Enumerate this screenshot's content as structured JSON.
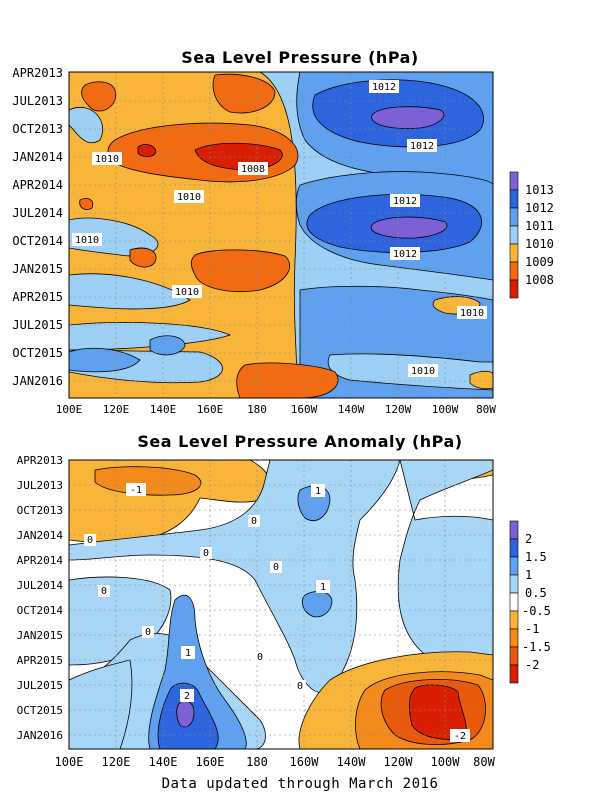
{
  "footer": "Data updated through March 2016",
  "chart_data": [
    {
      "type": "heatmap",
      "title": "Sea Level Pressure (hPa)",
      "x_tick_labels": [
        "100E",
        "120E",
        "140E",
        "160E",
        "180",
        "160W",
        "140W",
        "120W",
        "100W",
        "80W"
      ],
      "y_tick_labels": [
        "APR2013",
        "JUL2013",
        "OCT2013",
        "JAN2014",
        "APR2014",
        "JUL2014",
        "OCT2014",
        "JAN2015",
        "APR2015",
        "JUL2015",
        "OCT2015",
        "JAN2016"
      ],
      "colorbar": {
        "labels": [
          "1013",
          "1012",
          "1011",
          "1010",
          "1009",
          "1008"
        ],
        "colors": [
          "#7b60d6",
          "#2e64dd",
          "#5fa0ef",
          "#9ed0f5",
          "#f8b53a",
          "#f26b12",
          "#d81f04"
        ]
      },
      "contour_labels": [
        "1012",
        "1012",
        "1010",
        "1008",
        "1010",
        "1012",
        "1010",
        "1012",
        "1010",
        "1010",
        "1010"
      ],
      "background_value": "1010-1011 (light blue) east of 170W; 1009-1010 (orange) west of 170W",
      "features": [
        {
          "description": "High pressure core (>1013) near 120W",
          "times": [
            "JUL2013",
            "JUL2014"
          ]
        },
        {
          "description": "Low pressure core (<1008) near 160E",
          "times": [
            "JAN2014"
          ]
        }
      ]
    },
    {
      "type": "heatmap",
      "title": "Sea Level Pressure Anomaly (hPa)",
      "x_tick_labels": [
        "100E",
        "120E",
        "140E",
        "160E",
        "180",
        "160W",
        "140W",
        "120W",
        "100W",
        "80W"
      ],
      "y_tick_labels": [
        "APR2013",
        "JUL2013",
        "OCT2013",
        "JAN2014",
        "APR2014",
        "JUL2014",
        "OCT2014",
        "JAN2015",
        "APR2015",
        "JUL2015",
        "OCT2015",
        "JAN2016"
      ],
      "colorbar": {
        "labels": [
          "2",
          "1.5",
          "1",
          "0.5",
          "-0.5",
          "-1",
          "-1.5",
          "-2"
        ],
        "colors": [
          "#7b60d6",
          "#2e64dd",
          "#5fa0ef",
          "#a8d6f7",
          "#ffffff",
          "#f8b53a",
          "#f28a1c",
          "#e8590c",
          "#d81f04"
        ]
      },
      "contour_labels": [
        "-1",
        "1",
        "0",
        "0",
        "0",
        "0",
        "1",
        "0",
        "0",
        "1",
        "0",
        "2",
        "0",
        "-2"
      ],
      "features": [
        {
          "description": "Positive anomaly (>2) near 150E",
          "times": [
            "OCT2015",
            "JAN2016"
          ]
        },
        {
          "description": "Negative anomaly (<-2) near 100W",
          "times": [
            "JUL2015",
            "JAN2016"
          ]
        }
      ]
    }
  ]
}
